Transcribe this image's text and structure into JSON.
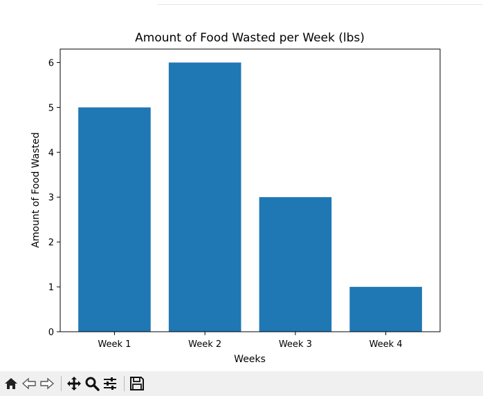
{
  "chart_data": {
    "type": "bar",
    "title": "Amount of Food Wasted per Week (lbs)",
    "xlabel": "Weeks",
    "ylabel": "Amount of Food Wasted",
    "categories": [
      "Week 1",
      "Week 2",
      "Week 3",
      "Week 4"
    ],
    "values": [
      5,
      6,
      3,
      1
    ],
    "ylim": [
      0,
      6.3
    ],
    "yticks": [
      0,
      1,
      2,
      3,
      4,
      5,
      6
    ],
    "grid": false,
    "bar_color": "#1f77b4"
  },
  "toolbar": {
    "buttons": [
      "home-icon",
      "back-icon",
      "forward-icon",
      "pan-icon",
      "zoom-icon",
      "configure-icon",
      "save-icon"
    ]
  }
}
